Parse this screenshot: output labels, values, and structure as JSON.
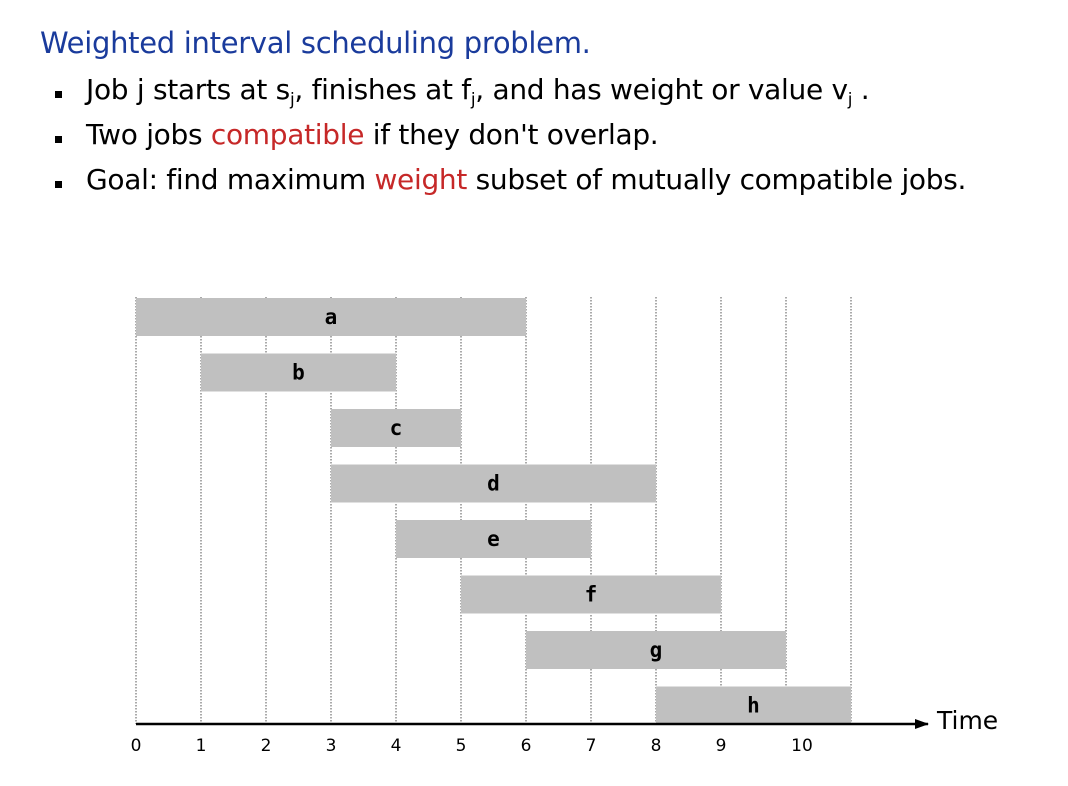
{
  "title": "Weighted interval scheduling problem.",
  "bullets": [
    {
      "pre": "Job j starts at s",
      "sub1": "j",
      "mid1": ", finishes at f",
      "sub2": "j",
      "mid2": ", and has weight or value v",
      "sub3": "j",
      "post": " ."
    },
    {
      "pre": "Two jobs ",
      "hl": "compatible",
      "post": " if they don't overlap."
    },
    {
      "pre": "Goal:  find maximum ",
      "hl": "weight",
      "post": " subset of mutually compatible jobs."
    }
  ],
  "chart_data": {
    "type": "gantt",
    "xlabel": "Time",
    "xlim": [
      0,
      11
    ],
    "ticks": [
      "0",
      "1",
      "2",
      "3",
      "4",
      "5",
      "6",
      "7",
      "8",
      "9",
      "10"
    ],
    "jobs": [
      {
        "name": "a",
        "start": 0,
        "end": 6
      },
      {
        "name": "b",
        "start": 1,
        "end": 4
      },
      {
        "name": "c",
        "start": 3,
        "end": 5
      },
      {
        "name": "d",
        "start": 3,
        "end": 8
      },
      {
        "name": "e",
        "start": 4,
        "end": 7
      },
      {
        "name": "f",
        "start": 5,
        "end": 9
      },
      {
        "name": "g",
        "start": 6,
        "end": 10
      },
      {
        "name": "h",
        "start": 8,
        "end": 11
      }
    ],
    "bar_color": "#c0c0c0"
  }
}
